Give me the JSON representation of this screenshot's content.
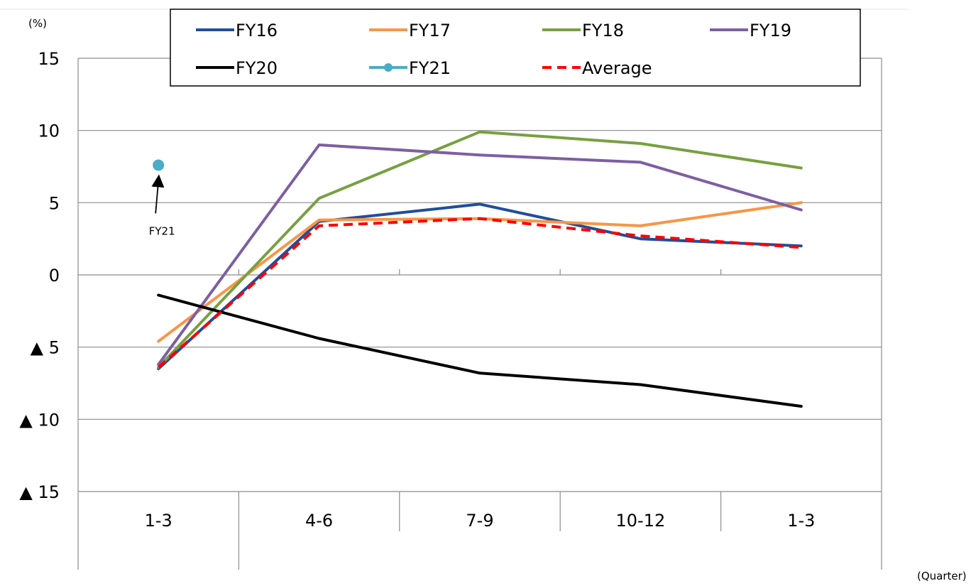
{
  "chart_data": {
    "type": "line",
    "y_unit_label": "(%)",
    "x_unit_label": "(Quarter)",
    "categories": [
      "1-3",
      "4-6",
      "7-9",
      "10-12",
      "1-3"
    ],
    "ylim": [
      -15,
      15
    ],
    "yticks": [
      15,
      10,
      5,
      0,
      -5,
      -10,
      -15
    ],
    "ytick_labels": [
      "15",
      "10",
      "5",
      "0",
      "▲ 5",
      "▲ 10",
      "▲ 15"
    ],
    "grid": true,
    "legend_position": "top",
    "series": [
      {
        "name": "FY16",
        "color": "#1F4E9C",
        "dash": false,
        "values": [
          -6.5,
          3.7,
          4.9,
          2.5,
          2.0
        ]
      },
      {
        "name": "FY17",
        "color": "#F79646",
        "dash": false,
        "values": [
          -4.6,
          3.8,
          3.9,
          3.4,
          5.0
        ]
      },
      {
        "name": "FY18",
        "color": "#77A041",
        "dash": false,
        "values": [
          -6.4,
          5.3,
          9.9,
          9.1,
          7.4
        ]
      },
      {
        "name": "FY19",
        "color": "#7D5FA3",
        "dash": false,
        "values": [
          -6.2,
          9.0,
          8.3,
          7.8,
          4.5
        ]
      },
      {
        "name": "FY20",
        "color": "#000000",
        "dash": false,
        "values": [
          -1.4,
          -4.4,
          -6.8,
          -7.6,
          -9.1
        ]
      },
      {
        "name": "FY21",
        "color": "#4BACC6",
        "dash": false,
        "marker": true,
        "values": [
          7.6,
          null,
          null,
          null,
          null
        ]
      },
      {
        "name": "Average",
        "color": "#FF0000",
        "dash": true,
        "values": [
          -6.4,
          3.4,
          3.9,
          2.7,
          1.9
        ]
      }
    ],
    "annotations": [
      {
        "text": "FY21",
        "points_to_series": "FY21",
        "category_index": 0
      }
    ]
  }
}
